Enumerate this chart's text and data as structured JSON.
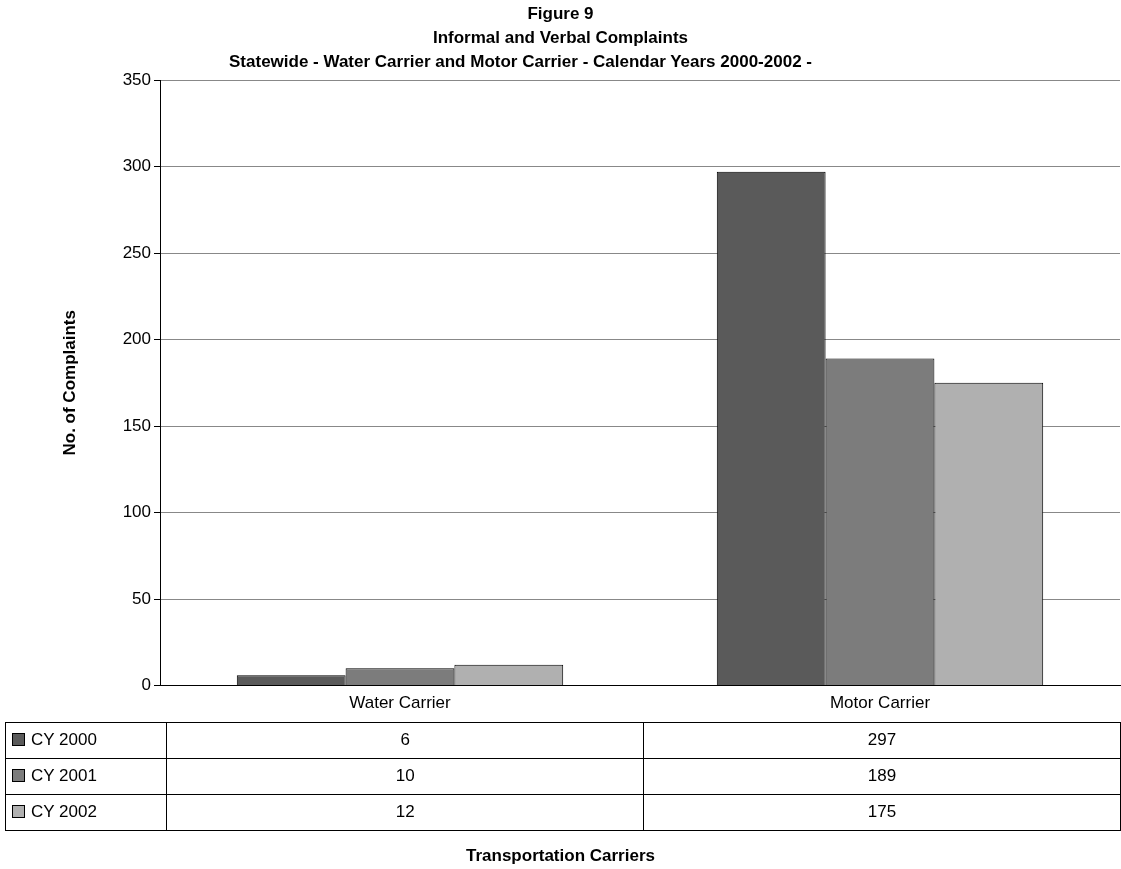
{
  "chart_data": {
    "type": "bar",
    "title": "Figure 9",
    "subtitle": "Informal and Verbal Complaints",
    "annotations": [
      "Statewide - Water Carrier and Motor Carrier - Calendar Years 2000-2002 -",
      "Transportation Carriers"
    ],
    "ylabel": "No. of Complaints",
    "categories": [
      "Water Carrier",
      "Motor Carrier"
    ],
    "series": [
      {
        "name": "CY 2000",
        "color": "#5a5a5a",
        "values": [
          6,
          297
        ]
      },
      {
        "name": "CY 2001",
        "color": "#7c7c7c",
        "values": [
          10,
          189
        ]
      },
      {
        "name": "CY 2002",
        "color": "#b0b0b0",
        "values": [
          12,
          175
        ]
      }
    ],
    "ylim": [
      0,
      350
    ],
    "yticks": [
      0,
      50,
      100,
      150,
      200,
      250,
      300,
      350
    ],
    "grid": "y",
    "legend": "bottom",
    "data_labels": true
  }
}
